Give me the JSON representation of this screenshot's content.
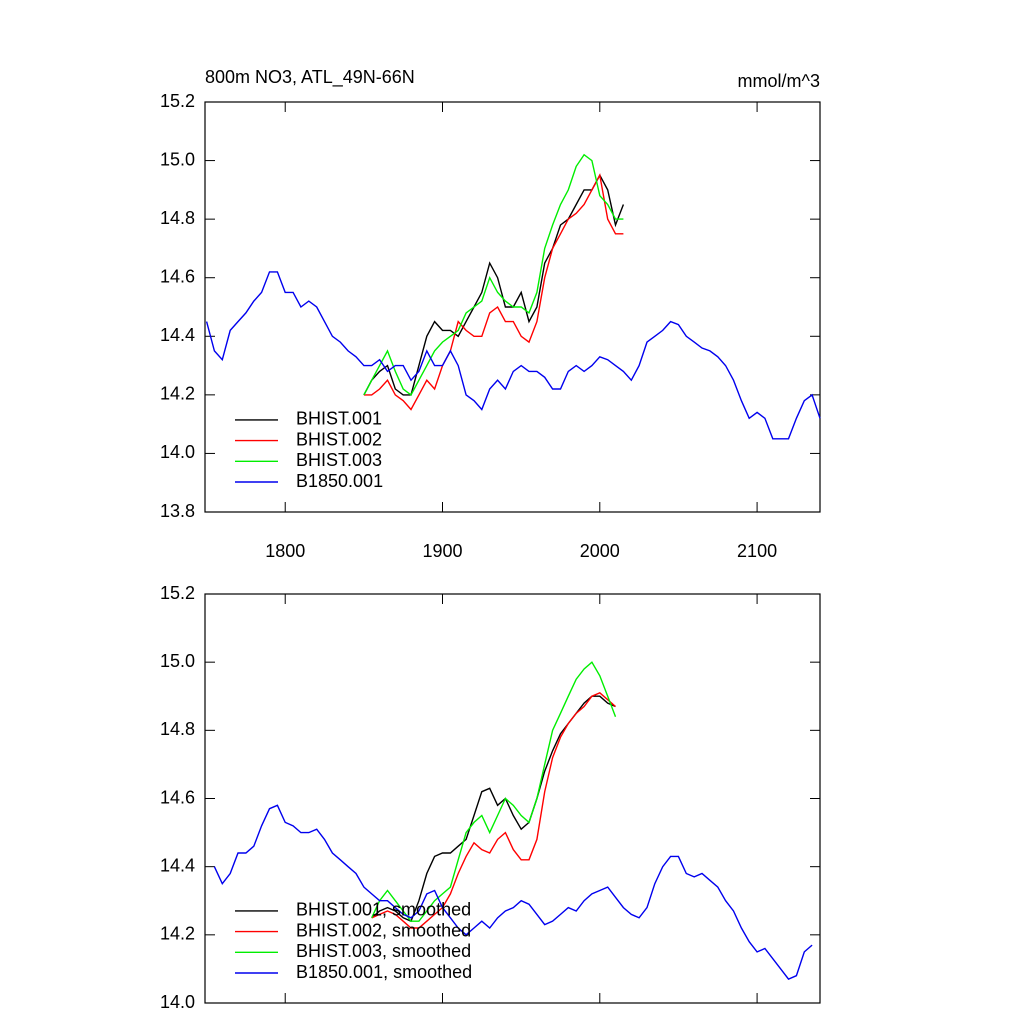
{
  "chart_data": [
    {
      "type": "line",
      "title": "800m NO3, ATL_49N-66N",
      "units": "mmol/m^3",
      "xlim": [
        1749,
        2140
      ],
      "xticks": [
        1800,
        1900,
        2000,
        2100
      ],
      "xtick_labels": true,
      "ylim": [
        13.8,
        15.2
      ],
      "yticks": [
        13.8,
        {
          "value": 14,
          "label": "14.0"
        },
        14.2,
        14.4,
        14.6,
        14.8,
        {
          "value": 15,
          "label": "15.0"
        },
        15.2
      ],
      "legend": "lower left",
      "series": [
        {
          "name": "BHIST.001",
          "color": "#000000",
          "x": [
            1850,
            1855,
            1860,
            1865,
            1870,
            1875,
            1880,
            1885,
            1890,
            1895,
            1900,
            1905,
            1910,
            1915,
            1920,
            1925,
            1930,
            1935,
            1940,
            1945,
            1950,
            1955,
            1960,
            1965,
            1970,
            1975,
            1980,
            1985,
            1990,
            1995,
            2000,
            2005,
            2010,
            2015
          ],
          "values": [
            14.2,
            14.25,
            14.28,
            14.3,
            14.22,
            14.2,
            14.2,
            14.3,
            14.4,
            14.45,
            14.42,
            14.42,
            14.4,
            14.45,
            14.5,
            14.55,
            14.65,
            14.6,
            14.5,
            14.5,
            14.55,
            14.45,
            14.5,
            14.65,
            14.7,
            14.78,
            14.8,
            14.85,
            14.9,
            14.9,
            14.95,
            14.9,
            14.78,
            14.85
          ]
        },
        {
          "name": "BHIST.002",
          "color": "#ff0000",
          "x": [
            1850,
            1855,
            1860,
            1865,
            1870,
            1875,
            1880,
            1885,
            1890,
            1895,
            1900,
            1905,
            1910,
            1915,
            1920,
            1925,
            1930,
            1935,
            1940,
            1945,
            1950,
            1955,
            1960,
            1965,
            1970,
            1975,
            1980,
            1985,
            1990,
            1995,
            2000,
            2005,
            2010,
            2015
          ],
          "values": [
            14.2,
            14.2,
            14.22,
            14.25,
            14.2,
            14.18,
            14.15,
            14.2,
            14.25,
            14.22,
            14.3,
            14.35,
            14.45,
            14.42,
            14.4,
            14.4,
            14.48,
            14.5,
            14.45,
            14.45,
            14.4,
            14.38,
            14.45,
            14.6,
            14.7,
            14.75,
            14.8,
            14.82,
            14.85,
            14.9,
            14.95,
            14.8,
            14.75,
            14.75
          ]
        },
        {
          "name": "BHIST.003",
          "color": "#00ee00",
          "x": [
            1850,
            1855,
            1860,
            1865,
            1870,
            1875,
            1880,
            1885,
            1890,
            1895,
            1900,
            1905,
            1910,
            1915,
            1920,
            1925,
            1930,
            1935,
            1940,
            1945,
            1950,
            1955,
            1960,
            1965,
            1970,
            1975,
            1980,
            1985,
            1990,
            1995,
            2000,
            2005,
            2010,
            2015
          ],
          "values": [
            14.2,
            14.25,
            14.3,
            14.35,
            14.28,
            14.22,
            14.2,
            14.25,
            14.3,
            14.35,
            14.38,
            14.4,
            14.42,
            14.48,
            14.5,
            14.52,
            14.6,
            14.55,
            14.52,
            14.5,
            14.5,
            14.48,
            14.55,
            14.7,
            14.78,
            14.85,
            14.9,
            14.98,
            15.02,
            15.0,
            14.88,
            14.85,
            14.8,
            14.8
          ]
        },
        {
          "name": "B1850.001",
          "color": "#0000ee",
          "x": [
            1750,
            1755,
            1760,
            1765,
            1770,
            1775,
            1780,
            1785,
            1790,
            1795,
            1800,
            1805,
            1810,
            1815,
            1820,
            1825,
            1830,
            1835,
            1840,
            1845,
            1850,
            1855,
            1860,
            1865,
            1870,
            1875,
            1880,
            1885,
            1890,
            1895,
            1900,
            1905,
            1910,
            1915,
            1920,
            1925,
            1930,
            1935,
            1940,
            1945,
            1950,
            1955,
            1960,
            1965,
            1970,
            1975,
            1980,
            1985,
            1990,
            1995,
            2000,
            2005,
            2010,
            2015,
            2020,
            2025,
            2030,
            2035,
            2040,
            2045,
            2050,
            2055,
            2060,
            2065,
            2070,
            2075,
            2080,
            2085,
            2090,
            2095,
            2100,
            2105,
            2110,
            2115,
            2120,
            2125,
            2130,
            2135,
            2140
          ],
          "values": [
            14.45,
            14.35,
            14.32,
            14.42,
            14.45,
            14.48,
            14.52,
            14.55,
            14.62,
            14.62,
            14.55,
            14.55,
            14.5,
            14.52,
            14.5,
            14.45,
            14.4,
            14.38,
            14.35,
            14.33,
            14.3,
            14.3,
            14.32,
            14.28,
            14.3,
            14.3,
            14.25,
            14.28,
            14.35,
            14.3,
            14.3,
            14.35,
            14.3,
            14.2,
            14.18,
            14.15,
            14.22,
            14.25,
            14.22,
            14.28,
            14.3,
            14.28,
            14.28,
            14.26,
            14.22,
            14.22,
            14.28,
            14.3,
            14.28,
            14.3,
            14.33,
            14.32,
            14.3,
            14.28,
            14.25,
            14.3,
            14.38,
            14.4,
            14.42,
            14.45,
            14.44,
            14.4,
            14.38,
            14.36,
            14.35,
            14.33,
            14.3,
            14.25,
            14.18,
            14.12,
            14.14,
            14.12,
            14.05,
            14.05,
            14.05,
            14.12,
            14.18,
            14.2,
            14.12
          ]
        }
      ]
    },
    {
      "type": "line",
      "xlim": [
        1749,
        2140
      ],
      "xticks": [
        1800,
        1900,
        2000,
        2100
      ],
      "xtick_labels": false,
      "ylim": [
        14,
        15.2
      ],
      "yticks": [
        {
          "value": 14,
          "label": "14.0"
        },
        14.2,
        14.4,
        14.6,
        14.8,
        {
          "value": 15,
          "label": "15.0"
        },
        15.2
      ],
      "legend": "lower left",
      "series": [
        {
          "name": "BHIST.001, smoothed",
          "color": "#000000",
          "x": [
            1855,
            1860,
            1865,
            1870,
            1875,
            1880,
            1885,
            1890,
            1895,
            1900,
            1905,
            1910,
            1915,
            1920,
            1925,
            1930,
            1935,
            1940,
            1945,
            1950,
            1955,
            1960,
            1965,
            1970,
            1975,
            1980,
            1985,
            1990,
            1995,
            2000,
            2005,
            2010
          ],
          "values": [
            14.25,
            14.27,
            14.28,
            14.27,
            14.25,
            14.24,
            14.3,
            14.38,
            14.43,
            14.44,
            14.44,
            14.46,
            14.48,
            14.55,
            14.62,
            14.63,
            14.58,
            14.6,
            14.55,
            14.51,
            14.53,
            14.6,
            14.68,
            14.74,
            14.79,
            14.82,
            14.85,
            14.88,
            14.9,
            14.9,
            14.88,
            14.87
          ]
        },
        {
          "name": "BHIST.002, smoothed",
          "color": "#ff0000",
          "x": [
            1855,
            1860,
            1865,
            1870,
            1875,
            1880,
            1885,
            1890,
            1895,
            1900,
            1905,
            1910,
            1915,
            1920,
            1925,
            1930,
            1935,
            1940,
            1945,
            1950,
            1955,
            1960,
            1965,
            1970,
            1975,
            1980,
            1985,
            1990,
            1995,
            2000,
            2005,
            2010
          ],
          "values": [
            14.25,
            14.26,
            14.27,
            14.26,
            14.24,
            14.22,
            14.22,
            14.24,
            14.26,
            14.28,
            14.32,
            14.38,
            14.43,
            14.47,
            14.45,
            14.44,
            14.48,
            14.5,
            14.45,
            14.42,
            14.42,
            14.48,
            14.62,
            14.72,
            14.78,
            14.82,
            14.85,
            14.87,
            14.9,
            14.91,
            14.89,
            14.87
          ]
        },
        {
          "name": "BHIST.003, smoothed",
          "color": "#00ee00",
          "x": [
            1855,
            1860,
            1865,
            1870,
            1875,
            1880,
            1885,
            1890,
            1895,
            1900,
            1905,
            1910,
            1915,
            1920,
            1925,
            1930,
            1935,
            1940,
            1945,
            1950,
            1955,
            1960,
            1965,
            1970,
            1975,
            1980,
            1985,
            1990,
            1995,
            2000,
            2005,
            2010
          ],
          "values": [
            14.25,
            14.3,
            14.33,
            14.3,
            14.27,
            14.24,
            14.24,
            14.27,
            14.3,
            14.32,
            14.34,
            14.42,
            14.5,
            14.53,
            14.55,
            14.5,
            14.55,
            14.6,
            14.58,
            14.55,
            14.53,
            14.6,
            14.7,
            14.8,
            14.85,
            14.9,
            14.95,
            14.98,
            15.0,
            14.96,
            14.9,
            14.84
          ]
        },
        {
          "name": "B1850.001, smoothed",
          "color": "#0000ee",
          "x": [
            1755,
            1760,
            1765,
            1770,
            1775,
            1780,
            1785,
            1790,
            1795,
            1800,
            1805,
            1810,
            1815,
            1820,
            1825,
            1830,
            1835,
            1840,
            1845,
            1850,
            1855,
            1860,
            1865,
            1870,
            1875,
            1880,
            1885,
            1890,
            1895,
            1900,
            1905,
            1910,
            1915,
            1920,
            1925,
            1930,
            1935,
            1940,
            1945,
            1950,
            1955,
            1960,
            1965,
            1970,
            1975,
            1980,
            1985,
            1990,
            1995,
            2000,
            2005,
            2010,
            2015,
            2020,
            2025,
            2030,
            2035,
            2040,
            2045,
            2050,
            2055,
            2060,
            2065,
            2070,
            2075,
            2080,
            2085,
            2090,
            2095,
            2100,
            2105,
            2110,
            2115,
            2120,
            2125,
            2130,
            2135
          ],
          "values": [
            14.4,
            14.35,
            14.38,
            14.44,
            14.44,
            14.46,
            14.52,
            14.57,
            14.58,
            14.53,
            14.52,
            14.5,
            14.5,
            14.51,
            14.48,
            14.44,
            14.42,
            14.4,
            14.38,
            14.34,
            14.32,
            14.3,
            14.3,
            14.28,
            14.26,
            14.25,
            14.27,
            14.32,
            14.33,
            14.28,
            14.25,
            14.22,
            14.2,
            14.22,
            14.24,
            14.22,
            14.25,
            14.27,
            14.28,
            14.3,
            14.29,
            14.26,
            14.23,
            14.24,
            14.26,
            14.28,
            14.27,
            14.3,
            14.32,
            14.33,
            14.34,
            14.31,
            14.28,
            14.26,
            14.25,
            14.28,
            14.35,
            14.4,
            14.43,
            14.43,
            14.38,
            14.37,
            14.38,
            14.36,
            14.34,
            14.3,
            14.27,
            14.22,
            14.18,
            14.15,
            14.16,
            14.13,
            14.1,
            14.07,
            14.08,
            14.15,
            14.17
          ]
        }
      ]
    }
  ]
}
